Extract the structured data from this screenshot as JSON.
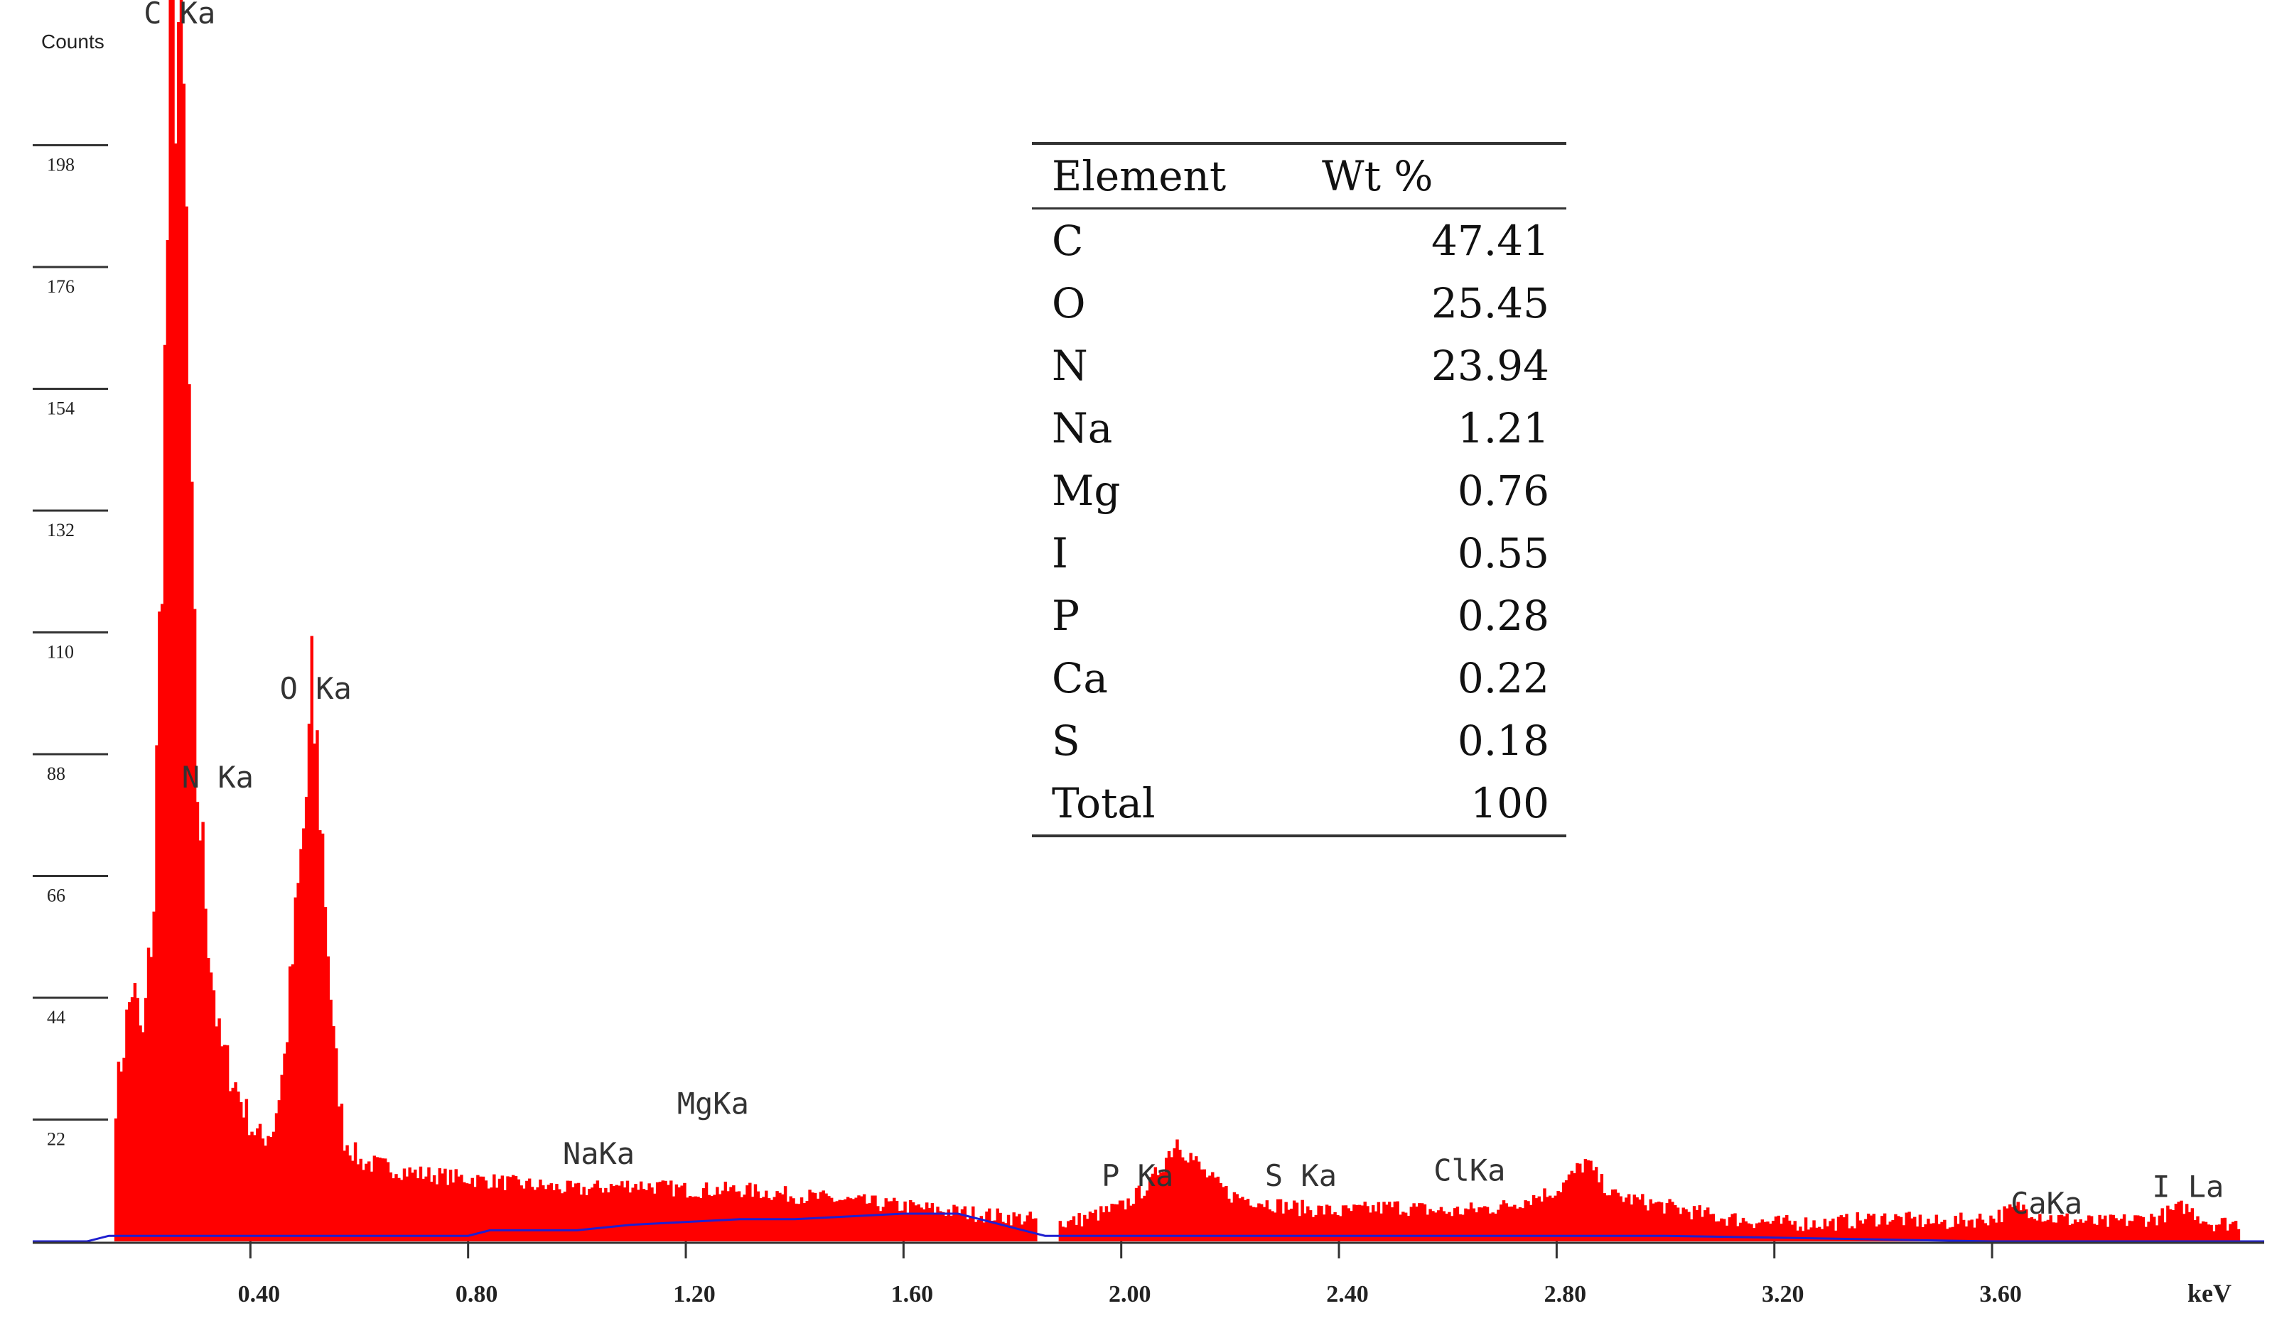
{
  "chart_data": {
    "type": "bar",
    "title": "",
    "xlabel": "keV",
    "ylabel": "Counts",
    "xlim": [
      0.0,
      4.1
    ],
    "ylim": [
      0,
      215
    ],
    "x_ticks": [
      "0.40",
      "0.80",
      "1.20",
      "1.60",
      "2.00",
      "2.40",
      "2.80",
      "3.20",
      "3.60"
    ],
    "y_ticks": [
      "22",
      "44",
      "66",
      "88",
      "110",
      "132",
      "154",
      "176",
      "198"
    ],
    "grid": false,
    "colors": {
      "spectrum": "#ff0000",
      "background": "#1f1fd0",
      "axis": "#333333"
    },
    "series": [
      {
        "kind": "spectrum",
        "points": [
          [
            0.15,
            25
          ],
          [
            0.18,
            45
          ],
          [
            0.2,
            35
          ],
          [
            0.22,
            60
          ],
          [
            0.24,
            150
          ],
          [
            0.25,
            205
          ],
          [
            0.26,
            215
          ],
          [
            0.27,
            212
          ],
          [
            0.28,
            175
          ],
          [
            0.29,
            120
          ],
          [
            0.3,
            80
          ],
          [
            0.32,
            55
          ],
          [
            0.34,
            35
          ],
          [
            0.36,
            30
          ],
          [
            0.38,
            25
          ],
          [
            0.4,
            20
          ],
          [
            0.42,
            18
          ],
          [
            0.44,
            20
          ],
          [
            0.46,
            32
          ],
          [
            0.48,
            55
          ],
          [
            0.5,
            78
          ],
          [
            0.51,
            95
          ],
          [
            0.52,
            85
          ],
          [
            0.53,
            70
          ],
          [
            0.55,
            35
          ],
          [
            0.57,
            18
          ],
          [
            0.6,
            14
          ],
          [
            0.7,
            12
          ],
          [
            0.8,
            11
          ],
          [
            0.9,
            10
          ],
          [
            1.0,
            9
          ],
          [
            1.1,
            10
          ],
          [
            1.2,
            9
          ],
          [
            1.3,
            9
          ],
          [
            1.4,
            8
          ],
          [
            1.5,
            7
          ],
          [
            1.6,
            6
          ],
          [
            1.7,
            5
          ],
          [
            1.8,
            4
          ],
          [
            1.9,
            3
          ],
          [
            2.0,
            6
          ],
          [
            2.05,
            10
          ],
          [
            2.1,
            18
          ],
          [
            2.15,
            12
          ],
          [
            2.2,
            8
          ],
          [
            2.3,
            6
          ],
          [
            2.4,
            5
          ],
          [
            2.5,
            6
          ],
          [
            2.6,
            5
          ],
          [
            2.7,
            6
          ],
          [
            2.8,
            9
          ],
          [
            2.85,
            14
          ],
          [
            2.9,
            8
          ],
          [
            3.0,
            6
          ],
          [
            3.1,
            4
          ],
          [
            3.2,
            3
          ],
          [
            3.3,
            3
          ],
          [
            3.4,
            4
          ],
          [
            3.5,
            3
          ],
          [
            3.6,
            4
          ],
          [
            3.65,
            6
          ],
          [
            3.7,
            4
          ],
          [
            3.8,
            3
          ],
          [
            3.9,
            4
          ],
          [
            3.95,
            6
          ],
          [
            4.0,
            3
          ],
          [
            4.05,
            3
          ]
        ]
      },
      {
        "kind": "background",
        "points": [
          [
            0.0,
            0
          ],
          [
            0.1,
            0
          ],
          [
            0.14,
            1
          ],
          [
            0.3,
            1
          ],
          [
            0.8,
            1
          ],
          [
            0.84,
            2
          ],
          [
            1.0,
            2
          ],
          [
            1.1,
            3
          ],
          [
            1.3,
            4
          ],
          [
            1.4,
            4
          ],
          [
            1.6,
            5
          ],
          [
            1.7,
            5
          ],
          [
            1.82,
            2
          ],
          [
            1.86,
            1
          ],
          [
            2.5,
            1
          ],
          [
            3.0,
            1
          ],
          [
            3.6,
            0
          ],
          [
            4.1,
            0
          ]
        ]
      }
    ],
    "peak_labels": [
      {
        "text": "C Ka",
        "x": 0.27,
        "y": 220
      },
      {
        "text": "N Ka",
        "x": 0.34,
        "y": 82
      },
      {
        "text": "O Ka",
        "x": 0.52,
        "y": 98
      },
      {
        "text": "NaKa",
        "x": 1.04,
        "y": 14
      },
      {
        "text": "MgKa",
        "x": 1.25,
        "y": 23
      },
      {
        "text": "P Ka",
        "x": 2.03,
        "y": 10
      },
      {
        "text": "S Ka",
        "x": 2.33,
        "y": 10
      },
      {
        "text": "ClKa",
        "x": 2.64,
        "y": 11
      },
      {
        "text": "CaKa",
        "x": 3.7,
        "y": 5
      },
      {
        "text": "I La",
        "x": 3.96,
        "y": 8
      }
    ]
  },
  "composition_table": {
    "headers": [
      "Element",
      "Wt %"
    ],
    "rows": [
      [
        "C",
        "47.41"
      ],
      [
        "O",
        "25.45"
      ],
      [
        "N",
        "23.94"
      ],
      [
        "Na",
        "1.21"
      ],
      [
        "Mg",
        "0.76"
      ],
      [
        "I",
        "0.55"
      ],
      [
        "P",
        "0.28"
      ],
      [
        "Ca",
        "0.22"
      ],
      [
        "S",
        "0.18"
      ],
      [
        "Total",
        "100"
      ]
    ]
  }
}
